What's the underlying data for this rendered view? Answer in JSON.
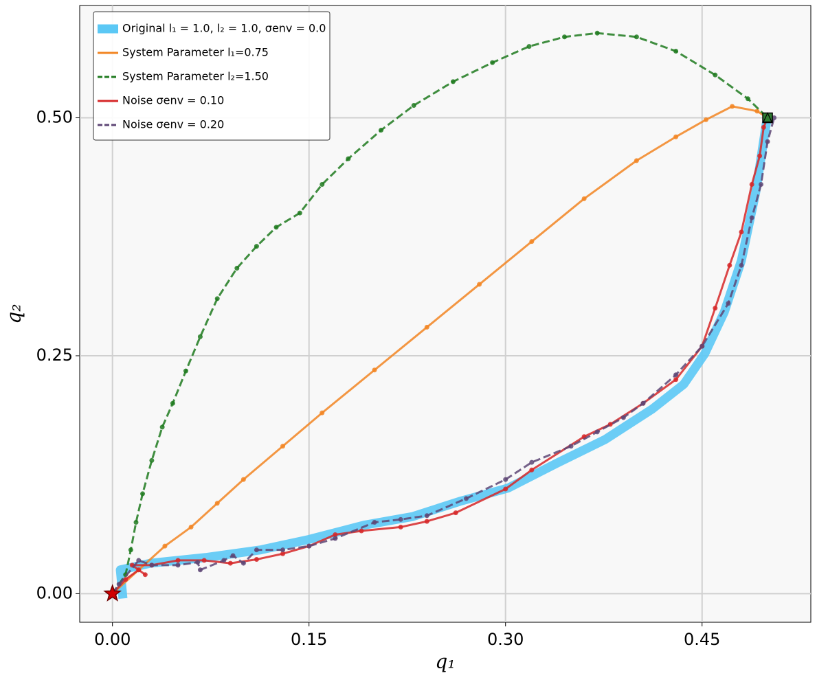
{
  "chart_data": {
    "type": "line",
    "xlabel": "q₁",
    "ylabel": "q₂",
    "xlim": [
      -0.025,
      0.533
    ],
    "ylim": [
      -0.03,
      0.618
    ],
    "xticks": [
      {
        "value": 0,
        "label": "0.00"
      },
      0.15,
      {
        "value": 0.3,
        "label": "0.30"
      },
      0.45
    ],
    "yticks": [
      {
        "value": 0,
        "label": "0.00"
      },
      0.25,
      {
        "value": 0.5,
        "label": "0.50"
      }
    ],
    "grid": true,
    "legend": "upper left",
    "series": [
      {
        "name": "Original l₁ = 1.0, l₂ = 1.0, σenv = 0.0",
        "color": "#5bc8f5",
        "linestyle": "solid",
        "markers": false,
        "x": [
          0.008,
          0.006,
          0.029,
          0.071,
          0.113,
          0.15,
          0.192,
          0.229,
          0.265,
          0.302,
          0.339,
          0.376,
          0.412,
          0.436,
          0.452,
          0.467,
          0.48,
          0.491,
          0.499,
          0.5
        ],
        "values": [
          -0.005,
          0.025,
          0.032,
          0.038,
          0.046,
          0.057,
          0.072,
          0.081,
          0.097,
          0.111,
          0.137,
          0.162,
          0.194,
          0.22,
          0.252,
          0.296,
          0.35,
          0.422,
          0.494,
          0.5
        ]
      },
      {
        "name": "System Parameter l₁=0.75",
        "color": "#f28522",
        "linestyle": "solid",
        "markers": true,
        "x": [
          0,
          0.02,
          0.04,
          0.06,
          0.08,
          0.1,
          0.13,
          0.16,
          0.2,
          0.24,
          0.28,
          0.32,
          0.36,
          0.4,
          0.43,
          0.453,
          0.473,
          0.492,
          0.5
        ],
        "values": [
          0,
          0.025,
          0.05,
          0.07,
          0.095,
          0.12,
          0.155,
          0.19,
          0.235,
          0.28,
          0.325,
          0.37,
          0.415,
          0.455,
          0.48,
          0.498,
          0.512,
          0.507,
          0.5
        ]
      },
      {
        "name": "System Parameter l₂=1.50",
        "color": "#1f7a1f",
        "linestyle": "dashed",
        "markers": true,
        "x": [
          0,
          0.01,
          0.014,
          0.018,
          0.023,
          0.03,
          0.038,
          0.046,
          0.056,
          0.067,
          0.08,
          0.095,
          0.11,
          0.125,
          0.143,
          0.16,
          0.18,
          0.205,
          0.23,
          0.26,
          0.29,
          0.318,
          0.345,
          0.37,
          0.4,
          0.43,
          0.46,
          0.485,
          0.5
        ],
        "values": [
          0,
          0.02,
          0.046,
          0.075,
          0.105,
          0.14,
          0.175,
          0.2,
          0.234,
          0.27,
          0.31,
          0.342,
          0.365,
          0.385,
          0.4,
          0.43,
          0.457,
          0.487,
          0.513,
          0.538,
          0.558,
          0.575,
          0.585,
          0.589,
          0.585,
          0.57,
          0.545,
          0.52,
          0.5
        ]
      },
      {
        "name": "Noise σenv = 0.10",
        "color": "#d62728",
        "linestyle": "solid",
        "markers": true,
        "x": [
          0,
          0.01,
          0.02,
          0.025,
          0.015,
          0.03,
          0.05,
          0.07,
          0.09,
          0.11,
          0.13,
          0.15,
          0.17,
          0.19,
          0.22,
          0.24,
          0.262,
          0.3,
          0.32,
          0.36,
          0.38,
          0.405,
          0.43,
          0.45,
          0.46,
          0.471,
          0.48,
          0.488,
          0.494,
          0.497,
          0.5
        ],
        "values": [
          0,
          0.015,
          0.025,
          0.02,
          0.03,
          0.03,
          0.035,
          0.035,
          0.032,
          0.036,
          0.042,
          0.05,
          0.062,
          0.066,
          0.07,
          0.076,
          0.085,
          0.11,
          0.13,
          0.165,
          0.178,
          0.2,
          0.225,
          0.26,
          0.3,
          0.345,
          0.38,
          0.43,
          0.46,
          0.49,
          0.5
        ]
      },
      {
        "name": "Noise σenv = 0.20",
        "color": "#5e4675",
        "linestyle": "dashed",
        "markers": true,
        "x": [
          0,
          0.005,
          0.02,
          0.03,
          0.05,
          0.065,
          0.067,
          0.085,
          0.092,
          0.1,
          0.11,
          0.13,
          0.15,
          0.17,
          0.2,
          0.22,
          0.24,
          0.27,
          0.3,
          0.32,
          0.35,
          0.37,
          0.39,
          0.405,
          0.43,
          0.45,
          0.47,
          0.48,
          0.488,
          0.495,
          0.5,
          0.505
        ],
        "values": [
          0,
          0.01,
          0.035,
          0.03,
          0.03,
          0.033,
          0.025,
          0.035,
          0.04,
          0.032,
          0.046,
          0.046,
          0.05,
          0.058,
          0.075,
          0.078,
          0.082,
          0.1,
          0.12,
          0.138,
          0.155,
          0.17,
          0.185,
          0.2,
          0.23,
          0.26,
          0.305,
          0.345,
          0.395,
          0.43,
          0.475,
          0.5
        ]
      }
    ],
    "start": {
      "x": 0,
      "y": 0
    },
    "goal": {
      "x": 0.5,
      "y": 0.5
    }
  }
}
